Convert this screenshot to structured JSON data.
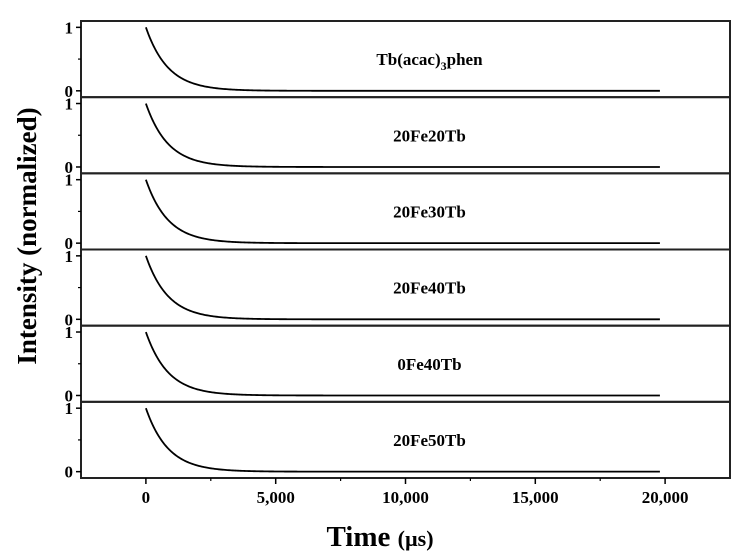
{
  "chart_data": {
    "type": "line",
    "layout": "stacked-panels",
    "title": "",
    "xlabel": "Time (µs)",
    "xlabel_parts": {
      "main": "Time ",
      "unit": "(µs)"
    },
    "ylabel": "Intensity (normalized)",
    "xlim": [
      -2500,
      22500
    ],
    "x_ticks": [
      0,
      5000,
      10000,
      15000,
      20000
    ],
    "x_tick_labels": [
      "0",
      "5,000",
      "10,000",
      "15,000",
      "20,000"
    ],
    "x_minor_ticks": [
      2500,
      7500,
      12500,
      17500
    ],
    "y_ticks_per_panel": [
      0,
      1
    ],
    "y_tick_labels_per_panel": [
      "0",
      "1"
    ],
    "y_minor_ticks_per_panel": [
      0.5
    ],
    "ylim_per_panel": [
      -0.1,
      1.1
    ],
    "grid": false,
    "legend": "none (each panel labeled in-plot, centered)",
    "x_start": 0,
    "x_end": 19800,
    "line_color": "#000000",
    "series": [
      {
        "name": "Tb(acac)3phen",
        "label_main": "Tb(acac)",
        "label_sub": "3",
        "label_tail": "phen",
        "decay_tau_us": 850,
        "x": [
          0,
          250,
          500,
          750,
          1000,
          1500,
          2000,
          2500,
          3000,
          4000,
          5000,
          7500,
          10000,
          15000,
          19800
        ],
        "values": [
          1.0,
          0.75,
          0.56,
          0.41,
          0.31,
          0.17,
          0.1,
          0.05,
          0.03,
          0.01,
          0.0,
          0.0,
          0.0,
          0.0,
          0.0
        ]
      },
      {
        "name": "20Fe20Tb",
        "label_main": "20Fe20Tb",
        "label_sub": "",
        "label_tail": "",
        "decay_tau_us": 850,
        "x": [
          0,
          250,
          500,
          750,
          1000,
          1500,
          2000,
          2500,
          3000,
          4000,
          5000,
          7500,
          10000,
          15000,
          19800
        ],
        "values": [
          1.0,
          0.75,
          0.56,
          0.41,
          0.31,
          0.17,
          0.1,
          0.05,
          0.03,
          0.01,
          0.0,
          0.0,
          0.0,
          0.0,
          0.0
        ]
      },
      {
        "name": "20Fe30Tb",
        "label_main": "20Fe30Tb",
        "label_sub": "",
        "label_tail": "",
        "decay_tau_us": 850,
        "x": [
          0,
          250,
          500,
          750,
          1000,
          1500,
          2000,
          2500,
          3000,
          4000,
          5000,
          7500,
          10000,
          15000,
          19800
        ],
        "values": [
          1.0,
          0.75,
          0.56,
          0.41,
          0.31,
          0.17,
          0.1,
          0.05,
          0.03,
          0.01,
          0.0,
          0.0,
          0.0,
          0.0,
          0.0
        ]
      },
      {
        "name": "20Fe40Tb",
        "label_main": "20Fe40Tb",
        "label_sub": "",
        "label_tail": "",
        "decay_tau_us": 850,
        "x": [
          0,
          250,
          500,
          750,
          1000,
          1500,
          2000,
          2500,
          3000,
          4000,
          5000,
          7500,
          10000,
          15000,
          19800
        ],
        "values": [
          1.0,
          0.75,
          0.56,
          0.41,
          0.31,
          0.17,
          0.1,
          0.05,
          0.03,
          0.01,
          0.0,
          0.0,
          0.0,
          0.0,
          0.0
        ]
      },
      {
        "name": "0Fe40Tb",
        "label_main": "0Fe40Tb",
        "label_sub": "",
        "label_tail": "",
        "decay_tau_us": 850,
        "x": [
          0,
          250,
          500,
          750,
          1000,
          1500,
          2000,
          2500,
          3000,
          4000,
          5000,
          7500,
          10000,
          15000,
          19800
        ],
        "values": [
          1.0,
          0.75,
          0.56,
          0.41,
          0.31,
          0.17,
          0.1,
          0.05,
          0.03,
          0.01,
          0.0,
          0.0,
          0.0,
          0.0,
          0.0
        ]
      },
      {
        "name": "20Fe50Tb",
        "label_main": "20Fe50Tb",
        "label_sub": "",
        "label_tail": "",
        "decay_tau_us": 850,
        "x": [
          0,
          250,
          500,
          750,
          1000,
          1500,
          2000,
          2500,
          3000,
          4000,
          5000,
          7500,
          10000,
          15000,
          19800
        ],
        "values": [
          1.0,
          0.75,
          0.56,
          0.41,
          0.31,
          0.17,
          0.1,
          0.05,
          0.03,
          0.01,
          0.0,
          0.0,
          0.0,
          0.0,
          0.0
        ]
      }
    ]
  }
}
